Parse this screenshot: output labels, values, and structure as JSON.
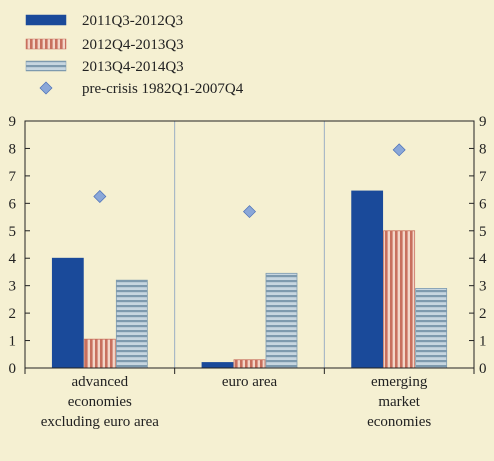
{
  "chart_data": {
    "type": "bar",
    "title": "",
    "xlabel": "",
    "ylabel": "",
    "ylim": [
      0,
      9
    ],
    "yticks": [
      0,
      1,
      2,
      3,
      4,
      5,
      6,
      7,
      8,
      9
    ],
    "grid": "vertical separators between categories",
    "legend_position": "top-left",
    "categories": [
      [
        "advanced",
        "economies",
        "excluding euro area"
      ],
      [
        "euro area"
      ],
      [
        "emerging",
        "market",
        "economies"
      ]
    ],
    "series": [
      {
        "name": "2011Q3-2012Q3",
        "values": [
          4.0,
          0.2,
          6.45
        ],
        "color": "#1a4a9a",
        "pattern": "solid"
      },
      {
        "name": "2012Q4-2013Q3",
        "values": [
          1.05,
          0.3,
          5.0
        ],
        "color": "#d08070",
        "pattern": "vertical-stripes"
      },
      {
        "name": "2013Q4-2014Q3",
        "values": [
          3.2,
          3.45,
          2.9
        ],
        "color": "#9db6c8",
        "pattern": "horizontal-stripes"
      }
    ],
    "markers": {
      "name": "pre-crisis 1982Q1-2007Q4",
      "values": [
        6.25,
        5.7,
        7.95
      ],
      "color": "#6d8fd6",
      "shape": "diamond"
    }
  }
}
